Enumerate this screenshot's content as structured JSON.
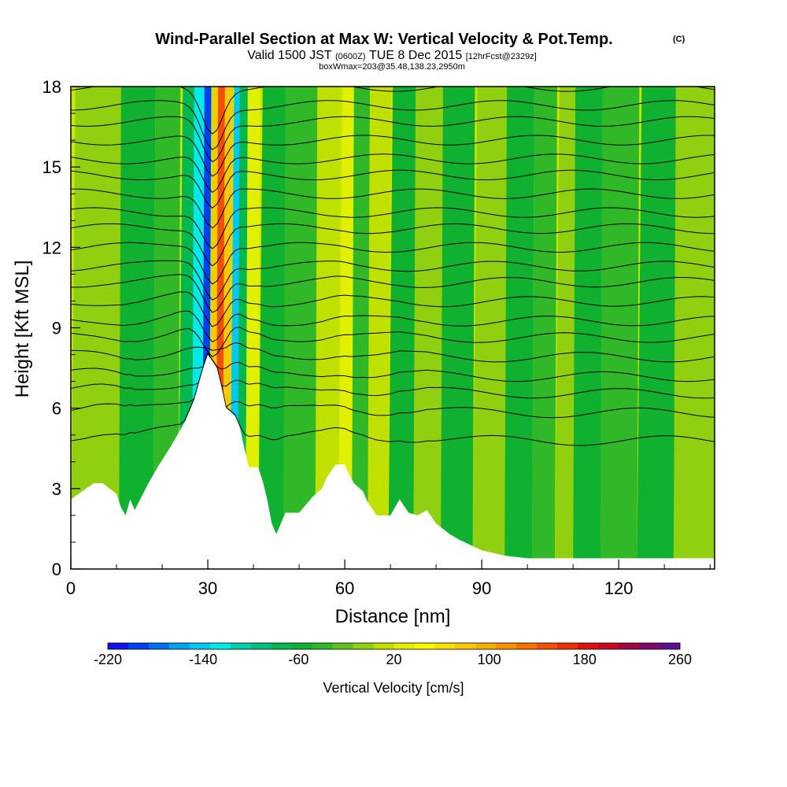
{
  "chart_data": {
    "type": "heatmap",
    "title": "Wind-Parallel Section at Max W: Vertical Velocity & Pot.Temp.",
    "title_units": "(C)",
    "subtitle": {
      "prefix": "Valid 1500 JST",
      "utc": "(0600Z)",
      "date": "TUE 8 Dec 2015",
      "forecast": "[12hrFcst@2329z]"
    },
    "subtitle2": "boxWmax=203@35.48,138.23,2950m",
    "xlabel": "Distance [nm]",
    "ylabel": "Height [Kft MSL]",
    "xlim": [
      0,
      141
    ],
    "ylim": [
      0,
      18
    ],
    "x_ticks": [
      0,
      30,
      60,
      90,
      120
    ],
    "y_ticks": [
      0,
      3,
      6,
      9,
      12,
      15,
      18
    ],
    "colorbar": {
      "label": "Vertical Velocity [cm/s]",
      "min": -220,
      "max": 260,
      "step": 20,
      "tick_labels": [
        -220,
        -140,
        -60,
        20,
        100,
        180,
        260
      ],
      "colors": [
        "#1010f0",
        "#0040f0",
        "#0070f0",
        "#00a0f0",
        "#00c8f0",
        "#00e8e8",
        "#00d0a8",
        "#00c080",
        "#00b850",
        "#10b030",
        "#30b828",
        "#60c020",
        "#90d010",
        "#c0e000",
        "#e0f000",
        "#f8f800",
        "#f8e000",
        "#f8c800",
        "#f8b000",
        "#f89000",
        "#f87000",
        "#f05000",
        "#e83000",
        "#e01010",
        "#c80820",
        "#a00840",
        "#800868",
        "#5a1090"
      ]
    },
    "terrain_profile": {
      "x": [
        0,
        5,
        7,
        10,
        11,
        12,
        13,
        14,
        17,
        19,
        22,
        25,
        27,
        29,
        30,
        32,
        33,
        34,
        36,
        37,
        38,
        39,
        41,
        42,
        43,
        44,
        45,
        47,
        50,
        53,
        55,
        56,
        58,
        60,
        61,
        62,
        64,
        65,
        67,
        70,
        72,
        74,
        76,
        78,
        80,
        83,
        85,
        90,
        95,
        100,
        110,
        120,
        130,
        141
      ],
      "y": [
        2.6,
        3.2,
        3.2,
        2.8,
        2.3,
        2.0,
        2.6,
        2.2,
        3.2,
        3.8,
        4.6,
        5.5,
        6.3,
        7.5,
        8.0,
        7.5,
        6.8,
        6.0,
        5.7,
        5.3,
        4.5,
        3.8,
        3.8,
        3.3,
        2.6,
        1.7,
        1.3,
        2.1,
        2.1,
        2.7,
        3.0,
        3.4,
        3.9,
        3.9,
        3.5,
        3.2,
        2.9,
        2.5,
        2.0,
        2.0,
        2.6,
        2.1,
        2.0,
        2.2,
        1.7,
        1.3,
        1.1,
        0.7,
        0.5,
        0.4,
        0.4,
        0.4,
        0.4,
        0.4
      ]
    },
    "velocity_bands": [
      {
        "x": 7,
        "value": 30
      },
      {
        "x": 14,
        "value": -30
      },
      {
        "x": 22,
        "value": -20
      },
      {
        "x": 25,
        "value": -50
      },
      {
        "x": 28,
        "value": -120
      },
      {
        "x": 29.5,
        "value": -200
      },
      {
        "x": 31,
        "value": 120
      },
      {
        "x": 32.5,
        "value": 203
      },
      {
        "x": 34,
        "value": 120
      },
      {
        "x": 35.5,
        "value": -140
      },
      {
        "x": 37.5,
        "value": -60
      },
      {
        "x": 39,
        "value": 60
      },
      {
        "x": 43,
        "value": -30
      },
      {
        "x": 50,
        "value": -20
      },
      {
        "x": 57,
        "value": 40
      },
      {
        "x": 60,
        "value": 60
      },
      {
        "x": 63,
        "value": -20
      },
      {
        "x": 67,
        "value": 40
      },
      {
        "x": 72,
        "value": -30
      },
      {
        "x": 78,
        "value": 30
      },
      {
        "x": 84,
        "value": -30
      },
      {
        "x": 92,
        "value": 20
      },
      {
        "x": 98,
        "value": -30
      },
      {
        "x": 104,
        "value": -20
      },
      {
        "x": 108,
        "value": 30
      },
      {
        "x": 112,
        "value": -30
      },
      {
        "x": 120,
        "value": -20
      },
      {
        "x": 128,
        "value": -30
      },
      {
        "x": 136,
        "value": 20
      }
    ],
    "isentropes": [
      5.0,
      6.0,
      6.7,
      7.3,
      8.0,
      8.7,
      9.3,
      10.0,
      10.7,
      11.3,
      12.0,
      12.7,
      13.3,
      14.0,
      14.7,
      15.3,
      16.0,
      16.7,
      17.3,
      18.0
    ]
  }
}
